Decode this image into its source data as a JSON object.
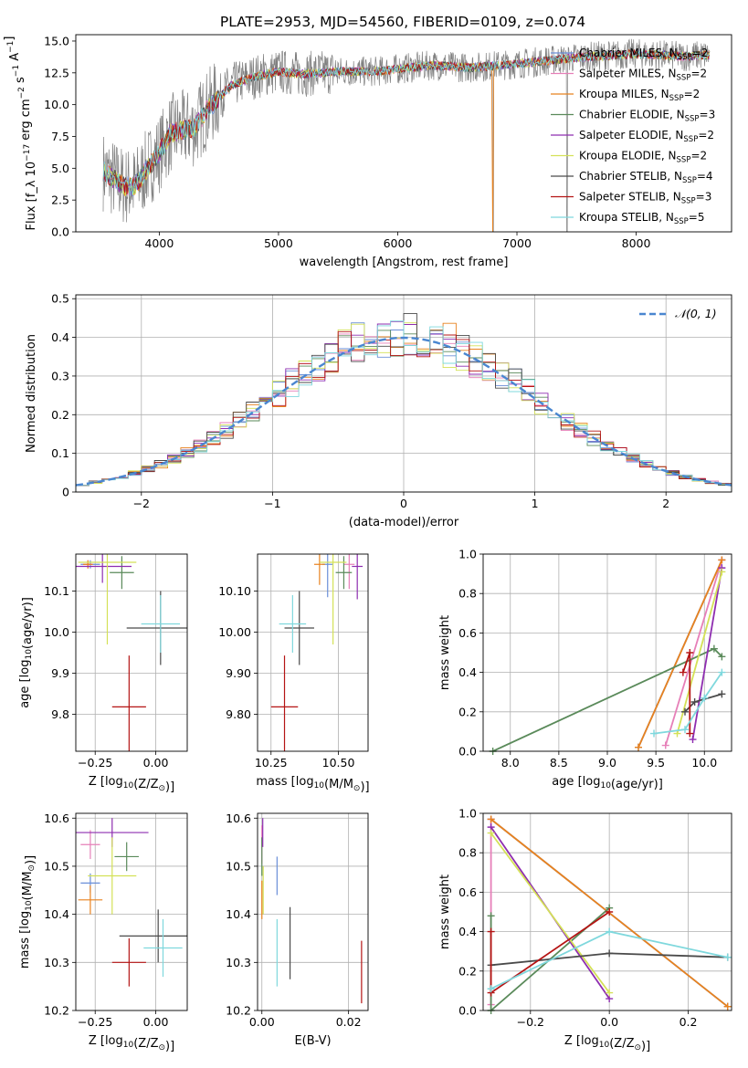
{
  "figure": {
    "title": "PLATE=2953, MJD=54560, FIBERID=0109, z=0.074"
  },
  "colors": {
    "Chabrier MILES": "#6a8fd8",
    "Salpeter MILES": "#e67fb8",
    "Kroupa MILES": "#e8821e",
    "Chabrier ELODIE": "#5a8a5a",
    "Salpeter ELODIE": "#8e2db0",
    "Kroupa ELODIE": "#d4e157",
    "Chabrier STELIB": "#4a4a4a",
    "Salpeter STELIB": "#b51414",
    "Kroupa STELIB": "#7fd8dd",
    "data": "#808080",
    "normal": "#4a86d0",
    "grid": "#b0b0b0"
  },
  "chart_data": [
    {
      "id": "spectrum",
      "type": "line",
      "title": "PLATE=2953, MJD=54560, FIBERID=0109, z=0.074",
      "xlabel": "wavelength [Angstrom, rest frame]",
      "ylabel": "Flux [f_λ 10^-17 erg cm^-2 s^-1 A^-1]",
      "xlim": [
        3300,
        8800
      ],
      "ylim": [
        0,
        15.5
      ],
      "xticks": [
        4000,
        5000,
        6000,
        7000,
        8000
      ],
      "yticks": [
        0.0,
        2.5,
        5.0,
        7.5,
        10.0,
        12.5,
        15.0
      ],
      "grid": false,
      "legend_position": "right",
      "legend": [
        {
          "name": "Chabrier MILES",
          "nssp": "2"
        },
        {
          "name": "Salpeter MILES",
          "nssp": "2"
        },
        {
          "name": "Kroupa MILES",
          "nssp": "2"
        },
        {
          "name": "Chabrier ELODIE",
          "nssp": "3"
        },
        {
          "name": "Salpeter ELODIE",
          "nssp": "2"
        },
        {
          "name": "Kroupa ELODIE",
          "nssp": "2"
        },
        {
          "name": "Chabrier STELIB",
          "nssp": "4"
        },
        {
          "name": "Salpeter STELIB",
          "nssp": "3"
        },
        {
          "name": "Kroupa STELIB",
          "nssp": "5"
        }
      ],
      "continuum_knots": [
        [
          3530,
          4.8
        ],
        [
          3700,
          3.6
        ],
        [
          3800,
          3.6
        ],
        [
          3900,
          5.0
        ],
        [
          4000,
          6.2
        ],
        [
          4100,
          7.8
        ],
        [
          4300,
          8.2
        ],
        [
          4400,
          9.6
        ],
        [
          4600,
          11.5
        ],
        [
          4800,
          12.2
        ],
        [
          5000,
          12.6
        ],
        [
          5200,
          12.4
        ],
        [
          5500,
          12.6
        ],
        [
          5800,
          12.6
        ],
        [
          6000,
          12.8
        ],
        [
          6300,
          13.1
        ],
        [
          6600,
          12.9
        ],
        [
          7000,
          13.2
        ],
        [
          7300,
          13.5
        ],
        [
          7500,
          13.7
        ],
        [
          8000,
          14.0
        ],
        [
          8400,
          13.8
        ],
        [
          8600,
          13.9
        ]
      ],
      "spectrum_range": [
        3530,
        8620
      ],
      "data_drops": [
        6800,
        7420
      ]
    },
    {
      "id": "residuals",
      "type": "histogram",
      "xlabel": "(data-model)/error",
      "ylabel": "Normed distribution",
      "xlim": [
        -2.5,
        2.5
      ],
      "ylim": [
        0,
        0.51
      ],
      "xticks": [
        -2,
        -1,
        0,
        1,
        2
      ],
      "yticks": [
        0.0,
        0.1,
        0.2,
        0.3,
        0.4,
        0.5
      ],
      "grid": true,
      "bin_width": 0.1,
      "reference_curve": "𝒩(0, 1)",
      "legend_position": "top-right"
    },
    {
      "id": "age_vs_Z",
      "type": "errorbar",
      "xlabel": "Z [log10(Z/Z⊙)]",
      "ylabel": "age [log10(age/yr)]",
      "xlim": [
        -0.33,
        0.13
      ],
      "ylim": [
        9.71,
        10.19
      ],
      "xticks": [
        -0.25,
        0.0
      ],
      "yticks": [
        9.8,
        9.9,
        10.0,
        10.1
      ],
      "grid": true,
      "points": [
        {
          "series": "Chabrier MILES",
          "x": -0.27,
          "y": 10.165,
          "xerr": 0.04,
          "yerr": 0.01
        },
        {
          "series": "Salpeter MILES",
          "x": -0.28,
          "y": 10.165,
          "xerr": 0.02,
          "yerr": 0.01
        },
        {
          "series": "Kroupa MILES",
          "x": -0.28,
          "y": 10.165,
          "xerr": 0.02,
          "yerr": 0.01
        },
        {
          "series": "Chabrier ELODIE",
          "x": -0.14,
          "y": 10.145,
          "xerr": 0.05,
          "yerr": 0.04
        },
        {
          "series": "Salpeter ELODIE",
          "x": -0.22,
          "y": 10.16,
          "xerr": 0.12,
          "yerr": 0.04
        },
        {
          "series": "Kroupa ELODIE",
          "x": -0.2,
          "y": 10.17,
          "xerr": 0.12,
          "yerr": 0.2
        },
        {
          "series": "Chabrier STELIB",
          "x": 0.02,
          "y": 10.01,
          "xerr": 0.14,
          "yerr": 0.09
        },
        {
          "series": "Salpeter STELIB",
          "x": -0.11,
          "y": 9.818,
          "xerr": 0.07,
          "yerr": 0.125
        },
        {
          "series": "Kroupa STELIB",
          "x": 0.02,
          "y": 10.02,
          "xerr": 0.08,
          "yerr": 0.07
        }
      ]
    },
    {
      "id": "age_vs_mass",
      "type": "errorbar",
      "xlabel": "mass [log10(M/M⊙)]",
      "ylabel": "",
      "xlim": [
        10.2,
        10.61
      ],
      "ylim": [
        9.71,
        10.19
      ],
      "xticks": [
        10.25,
        10.5
      ],
      "yticks": [
        9.8,
        9.9,
        10.0,
        10.1
      ],
      "grid": true,
      "points": [
        {
          "series": "Chabrier MILES",
          "x": 10.46,
          "y": 10.165,
          "xerr": 0.02,
          "yerr": 0.08
        },
        {
          "series": "Salpeter MILES",
          "x": 10.54,
          "y": 10.165,
          "xerr": 0.02,
          "yerr": 0.06
        },
        {
          "series": "Kroupa MILES",
          "x": 10.43,
          "y": 10.165,
          "xerr": 0.02,
          "yerr": 0.05
        },
        {
          "series": "Chabrier ELODIE",
          "x": 10.52,
          "y": 10.145,
          "xerr": 0.03,
          "yerr": 0.04
        },
        {
          "series": "Salpeter ELODIE",
          "x": 10.57,
          "y": 10.16,
          "xerr": 0.02,
          "yerr": 0.08
        },
        {
          "series": "Kroupa ELODIE",
          "x": 10.48,
          "y": 10.17,
          "xerr": 0.05,
          "yerr": 0.2
        },
        {
          "series": "Chabrier STELIB",
          "x": 10.355,
          "y": 10.01,
          "xerr": 0.055,
          "yerr": 0.09
        },
        {
          "series": "Salpeter STELIB",
          "x": 10.3,
          "y": 9.818,
          "xerr": 0.05,
          "yerr": 0.125
        },
        {
          "series": "Kroupa STELIB",
          "x": 10.33,
          "y": 10.02,
          "xerr": 0.05,
          "yerr": 0.07
        }
      ]
    },
    {
      "id": "weight_vs_age",
      "type": "line",
      "xlabel": "age [log10(age/yr)]",
      "ylabel": "mass weight",
      "xlim": [
        7.72,
        10.28
      ],
      "ylim": [
        0,
        1.0
      ],
      "xticks": [
        8.0,
        8.5,
        9.0,
        9.5,
        10.0
      ],
      "yticks": [
        0.0,
        0.2,
        0.4,
        0.6,
        0.8,
        1.0
      ],
      "grid": true,
      "series": [
        {
          "name": "Chabrier MILES",
          "x": [
            9.32,
            10.18
          ],
          "y": [
            0.02,
            0.97
          ]
        },
        {
          "name": "Salpeter MILES",
          "x": [
            9.6,
            10.18
          ],
          "y": [
            0.03,
            0.97
          ]
        },
        {
          "name": "Kroupa MILES",
          "x": [
            9.32,
            10.18
          ],
          "y": [
            0.02,
            0.97
          ]
        },
        {
          "name": "Chabrier ELODIE",
          "x": [
            7.82,
            10.1,
            10.18
          ],
          "y": [
            0.0,
            0.52,
            0.48
          ]
        },
        {
          "name": "Salpeter ELODIE",
          "x": [
            9.88,
            10.18
          ],
          "y": [
            0.06,
            0.93
          ]
        },
        {
          "name": "Kroupa ELODIE",
          "x": [
            9.72,
            10.18
          ],
          "y": [
            0.09,
            0.91
          ]
        },
        {
          "name": "Chabrier STELIB",
          "x": [
            9.8,
            9.9,
            10.18
          ],
          "y": [
            0.2,
            0.25,
            0.29
          ]
        },
        {
          "name": "Salpeter STELIB",
          "x": [
            9.78,
            9.85,
            9.85
          ],
          "y": [
            0.4,
            0.5,
            0.09
          ]
        },
        {
          "name": "Kroupa STELIB",
          "x": [
            9.48,
            9.8,
            10.0,
            10.18
          ],
          "y": [
            0.09,
            0.11,
            0.27,
            0.4
          ]
        }
      ]
    },
    {
      "id": "mass_vs_Z",
      "type": "errorbar",
      "xlabel": "Z [log10(Z/Z⊙)]",
      "ylabel": "mass [log10(M/M⊙)]",
      "xlim": [
        -0.33,
        0.13
      ],
      "ylim": [
        10.2,
        10.61
      ],
      "xticks": [
        -0.25,
        0.0
      ],
      "yticks": [
        10.2,
        10.3,
        10.4,
        10.5,
        10.6
      ],
      "grid": true,
      "points": [
        {
          "series": "Chabrier MILES",
          "x": -0.27,
          "y": 10.465,
          "xerr": 0.04,
          "yerr": 0.02
        },
        {
          "series": "Salpeter MILES",
          "x": -0.27,
          "y": 10.545,
          "xerr": 0.04,
          "yerr": 0.03
        },
        {
          "series": "Kroupa MILES",
          "x": -0.27,
          "y": 10.43,
          "xerr": 0.05,
          "yerr": 0.03
        },
        {
          "series": "Chabrier ELODIE",
          "x": -0.12,
          "y": 10.52,
          "xerr": 0.05,
          "yerr": 0.03
        },
        {
          "series": "Salpeter ELODIE",
          "x": -0.18,
          "y": 10.57,
          "xerr": 0.15,
          "yerr": 0.03
        },
        {
          "series": "Kroupa ELODIE",
          "x": -0.18,
          "y": 10.48,
          "xerr": 0.1,
          "yerr": 0.08
        },
        {
          "series": "Chabrier STELIB",
          "x": 0.01,
          "y": 10.355,
          "xerr": 0.16,
          "yerr": 0.055
        },
        {
          "series": "Salpeter STELIB",
          "x": -0.11,
          "y": 10.3,
          "xerr": 0.07,
          "yerr": 0.05
        },
        {
          "series": "Kroupa STELIB",
          "x": 0.03,
          "y": 10.33,
          "xerr": 0.08,
          "yerr": 0.06
        }
      ]
    },
    {
      "id": "mass_vs_EBV",
      "type": "errorbar",
      "xlabel": "E(B-V)",
      "ylabel": "",
      "xlim": [
        -0.001,
        0.0245
      ],
      "ylim": [
        10.2,
        10.61
      ],
      "xticks": [
        0.0,
        0.02
      ],
      "yticks": [
        10.2,
        10.3,
        10.4,
        10.5,
        10.6
      ],
      "grid": true,
      "points": [
        {
          "series": "Chabrier MILES",
          "x": 0.0035,
          "y": 10.48,
          "xerr": 0,
          "yerr": 0.04
        },
        {
          "series": "Salpeter MILES",
          "x": 0.0,
          "y": 10.545,
          "xerr": 0,
          "yerr": 0.04
        },
        {
          "series": "Kroupa MILES",
          "x": 0.0,
          "y": 10.43,
          "xerr": 0,
          "yerr": 0.04
        },
        {
          "series": "Chabrier ELODIE",
          "x": 0.0,
          "y": 10.52,
          "xerr": 0,
          "yerr": 0.04
        },
        {
          "series": "Salpeter ELODIE",
          "x": 0.0002,
          "y": 10.57,
          "xerr": 0,
          "yerr": 0.03
        },
        {
          "series": "Kroupa ELODIE",
          "x": 0.0003,
          "y": 10.45,
          "xerr": 0,
          "yerr": 0.05
        },
        {
          "series": "Chabrier STELIB",
          "x": 0.0065,
          "y": 10.34,
          "xerr": 0,
          "yerr": 0.075
        },
        {
          "series": "Salpeter STELIB",
          "x": 0.023,
          "y": 10.28,
          "xerr": 0,
          "yerr": 0.065
        },
        {
          "series": "Kroupa STELIB",
          "x": 0.0035,
          "y": 10.32,
          "xerr": 0,
          "yerr": 0.07
        }
      ]
    },
    {
      "id": "weight_vs_Z",
      "type": "line",
      "xlabel": "Z [log10(Z/Z⊙)]",
      "ylabel": "mass weight",
      "xlim": [
        -0.32,
        0.31
      ],
      "ylim": [
        0,
        1.0
      ],
      "xticks": [
        -0.2,
        0.0,
        0.2
      ],
      "yticks": [
        0.0,
        0.2,
        0.4,
        0.6,
        0.8,
        1.0
      ],
      "grid": true,
      "series": [
        {
          "name": "Chabrier MILES",
          "x": [
            -0.3,
            0.3
          ],
          "y": [
            0.97,
            0.02
          ]
        },
        {
          "name": "Salpeter MILES",
          "x": [
            -0.3,
            -0.3
          ],
          "y": [
            0.97,
            0.03
          ]
        },
        {
          "name": "Kroupa MILES",
          "x": [
            -0.3,
            0.3
          ],
          "y": [
            0.97,
            0.02
          ]
        },
        {
          "name": "Chabrier ELODIE",
          "x": [
            -0.3,
            -0.3,
            0.0
          ],
          "y": [
            0.48,
            0.0,
            0.52
          ]
        },
        {
          "name": "Salpeter ELODIE",
          "x": [
            -0.3,
            0.0
          ],
          "y": [
            0.93,
            0.06
          ]
        },
        {
          "name": "Kroupa ELODIE",
          "x": [
            -0.3,
            0.0
          ],
          "y": [
            0.9,
            0.09
          ]
        },
        {
          "name": "Chabrier STELIB",
          "x": [
            -0.3,
            0.0,
            0.3
          ],
          "y": [
            0.23,
            0.29,
            0.27
          ]
        },
        {
          "name": "Salpeter STELIB",
          "x": [
            -0.3,
            -0.3,
            0.0
          ],
          "y": [
            0.4,
            0.09,
            0.5
          ]
        },
        {
          "name": "Kroupa STELIB",
          "x": [
            -0.3,
            0.0,
            0.3
          ],
          "y": [
            0.11,
            0.4,
            0.27
          ]
        }
      ]
    }
  ]
}
